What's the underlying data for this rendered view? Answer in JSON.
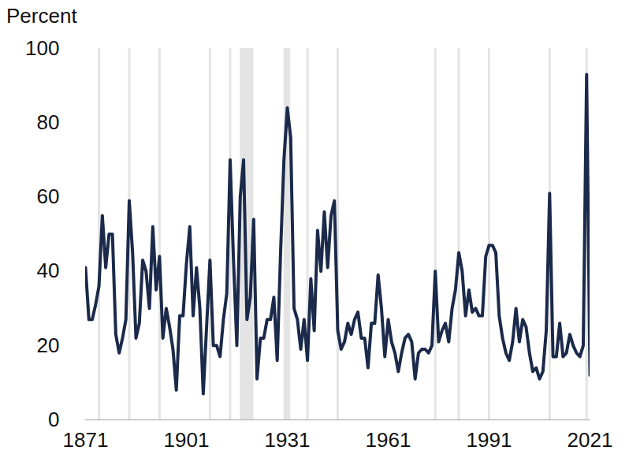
{
  "chart_data": {
    "type": "line",
    "ylabel": "Percent",
    "color": "#1b2a4a",
    "x": [
      1871,
      1872,
      1873,
      1874,
      1875,
      1876,
      1877,
      1878,
      1879,
      1880,
      1881,
      1882,
      1883,
      1884,
      1885,
      1886,
      1887,
      1888,
      1889,
      1890,
      1891,
      1892,
      1893,
      1894,
      1895,
      1896,
      1897,
      1898,
      1899,
      1900,
      1901,
      1902,
      1903,
      1904,
      1905,
      1906,
      1907,
      1908,
      1909,
      1910,
      1911,
      1912,
      1913,
      1914,
      1915,
      1916,
      1917,
      1918,
      1919,
      1920,
      1921,
      1922,
      1923,
      1924,
      1925,
      1926,
      1927,
      1928,
      1929,
      1930,
      1931,
      1932,
      1933,
      1934,
      1935,
      1936,
      1937,
      1938,
      1939,
      1940,
      1941,
      1942,
      1943,
      1944,
      1945,
      1946,
      1947,
      1948,
      1949,
      1950,
      1951,
      1952,
      1953,
      1954,
      1955,
      1956,
      1957,
      1958,
      1959,
      1960,
      1961,
      1962,
      1963,
      1964,
      1965,
      1966,
      1967,
      1968,
      1969,
      1970,
      1971,
      1972,
      1973,
      1974,
      1975,
      1976,
      1977,
      1978,
      1979,
      1980,
      1981,
      1982,
      1983,
      1984,
      1985,
      1986,
      1987,
      1988,
      1989,
      1990,
      1991,
      1992,
      1993,
      1994,
      1995,
      1996,
      1997,
      1998,
      1999,
      2000,
      2001,
      2002,
      2003,
      2004,
      2005,
      2006,
      2007,
      2008,
      2009,
      2010,
      2011,
      2012,
      2013,
      2014,
      2015,
      2016,
      2017,
      2018,
      2019,
      2020,
      2021
    ],
    "values": [
      41,
      27,
      27,
      31,
      36,
      55,
      41,
      50,
      50,
      23,
      18,
      22,
      27,
      59,
      45,
      22,
      26,
      43,
      40,
      30,
      52,
      35,
      44,
      22,
      30,
      25,
      19,
      8,
      28,
      28,
      42,
      52,
      28,
      41,
      30,
      7,
      25,
      43,
      20,
      20,
      17,
      27,
      34,
      70,
      43,
      20,
      60,
      70,
      27,
      33,
      54,
      11,
      22,
      22,
      27,
      27,
      33,
      16,
      45,
      70,
      84,
      76,
      30,
      27,
      19,
      27,
      16,
      38,
      24,
      51,
      40,
      56,
      41,
      55,
      59,
      24,
      19,
      21,
      26,
      23,
      27,
      29,
      22,
      22,
      14,
      26,
      26,
      39,
      30,
      17,
      27,
      21,
      18,
      13,
      18,
      22,
      23,
      21,
      11,
      18,
      19,
      19,
      18,
      20,
      40,
      21,
      24,
      26,
      21,
      30,
      35,
      45,
      40,
      28,
      35,
      29,
      30,
      28,
      28,
      44,
      47,
      47,
      45,
      28,
      22,
      18,
      16,
      21,
      30,
      21,
      27,
      25,
      18,
      13,
      14,
      11,
      13,
      24,
      61,
      17,
      17,
      26,
      17,
      18,
      23,
      20,
      18,
      17,
      20,
      93,
      12
    ],
    "xlim": [
      1871,
      2021
    ],
    "xticks": [
      1871,
      1901,
      1931,
      1961,
      1991,
      2021
    ],
    "ylim": [
      0,
      100
    ],
    "yticks": [
      0,
      20,
      40,
      60,
      80,
      100
    ],
    "grid": false,
    "shaded_periods": [
      [
        1875,
        1875
      ],
      [
        1884,
        1884
      ],
      [
        1893,
        1893
      ],
      [
        1908,
        1908
      ],
      [
        1914,
        1914
      ],
      [
        1917,
        1921
      ],
      [
        1930,
        1932
      ],
      [
        1937,
        1937
      ],
      [
        1946,
        1946
      ],
      [
        1975,
        1975
      ],
      [
        1982,
        1982
      ],
      [
        1991,
        1991
      ],
      [
        2009,
        2009
      ],
      [
        2020,
        2020
      ]
    ]
  }
}
